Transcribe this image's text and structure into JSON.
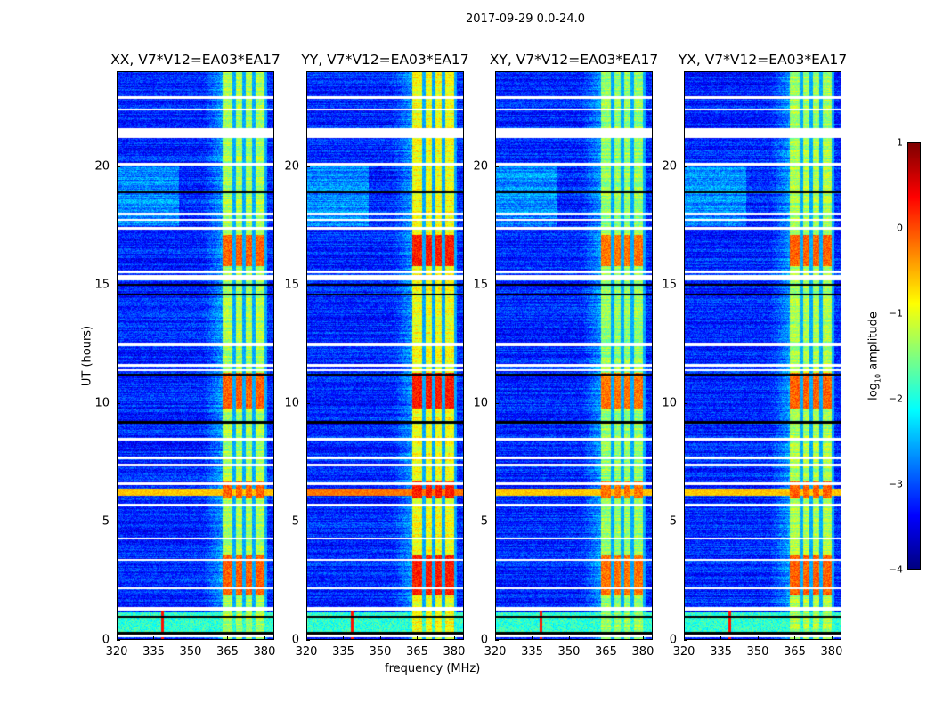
{
  "figure_title": "2017-09-29 0.0-24.0",
  "chart_data": [
    {
      "type": "heatmap",
      "title": "XX, V7*V12=EA03*EA17",
      "band_boost": 0.0
    },
    {
      "type": "heatmap",
      "title": "YY, V7*V12=EA03*EA17",
      "band_boost": 0.35
    },
    {
      "type": "heatmap",
      "title": "XY, V7*V12=EA03*EA17",
      "band_boost": -0.1
    },
    {
      "type": "heatmap",
      "title": "YX, V7*V12=EA03*EA17",
      "band_boost": 0.0
    }
  ],
  "axes": {
    "xlabel": "frequency (MHz)",
    "ylabel": "UT (hours)",
    "xlim": [
      320,
      384
    ],
    "ylim": [
      0,
      24
    ],
    "xticks": [
      "320",
      "335",
      "350",
      "365",
      "380"
    ],
    "xtick_values": [
      320,
      335,
      350,
      365,
      380
    ],
    "yticks": [
      "0",
      "5",
      "10",
      "15",
      "20"
    ],
    "ytick_values": [
      0,
      5,
      10,
      15,
      20
    ]
  },
  "spectrum_features": {
    "rfi_band_mhz": [
      363,
      381
    ],
    "band_gaps_mhz": [
      367.5,
      371.5,
      375.5,
      380.5
    ],
    "strong_hours": [
      [
        15.8,
        17.1
      ],
      [
        6.0,
        6.7
      ],
      [
        1.9,
        3.6
      ],
      [
        9.8,
        11.3
      ]
    ],
    "flagged_rows_hours": [
      [
        22.85,
        22.95
      ],
      [
        22.35,
        22.45
      ],
      [
        21.2,
        21.6
      ],
      [
        20.05,
        20.15
      ],
      [
        17.95,
        18.05
      ],
      [
        17.7,
        17.8
      ],
      [
        17.35,
        17.45
      ],
      [
        15.5,
        15.6
      ],
      [
        15.2,
        15.4
      ],
      [
        12.4,
        12.55
      ],
      [
        11.55,
        11.65
      ],
      [
        11.35,
        11.45
      ],
      [
        8.45,
        8.55
      ],
      [
        7.65,
        7.75
      ],
      [
        7.35,
        7.45
      ],
      [
        6.55,
        6.65
      ],
      [
        5.65,
        5.75
      ],
      [
        4.25,
        4.35
      ],
      [
        3.35,
        3.45
      ],
      [
        2.15,
        2.25
      ],
      [
        1.25,
        1.4
      ],
      [
        0.15,
        0.25
      ]
    ],
    "dark_rows_hours": [
      18.9,
      15.0,
      14.6,
      11.2,
      9.2,
      1.0,
      0.3
    ],
    "rfi_spike_mhz": 338.5
  },
  "colorbar": {
    "label_prefix": "log",
    "label_sub": "10",
    "label_suffix": " amplitude",
    "range": [
      -4,
      1
    ],
    "ticks": [
      "1",
      "0",
      "−1",
      "−2",
      "−3",
      "−4"
    ],
    "tick_values": [
      1,
      0,
      -1,
      -2,
      -3,
      -4
    ],
    "colormap": "jet"
  }
}
